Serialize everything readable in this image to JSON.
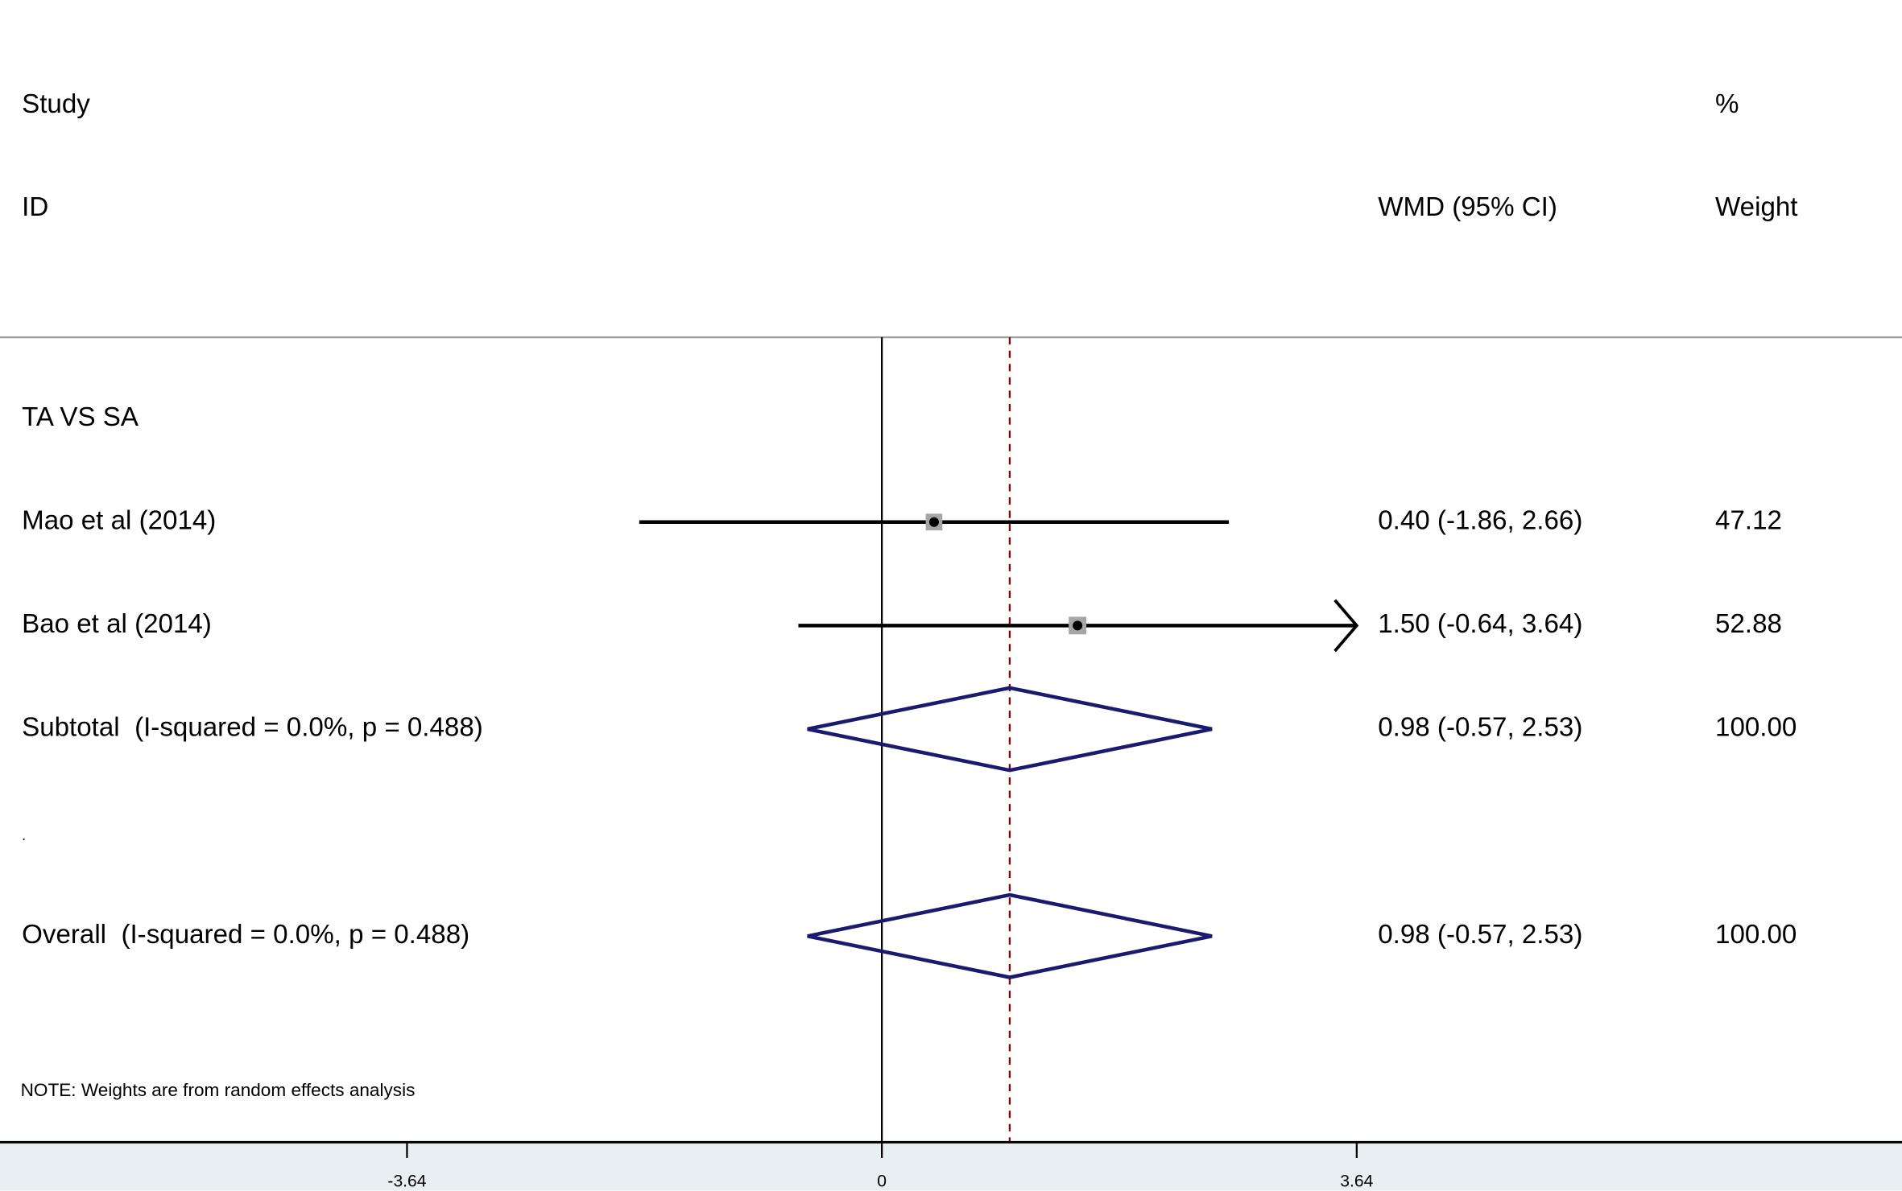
{
  "chart_data": {
    "type": "forest",
    "headers": {
      "study": "Study",
      "id": "ID",
      "effect": "WMD (95% CI)",
      "percent": "%",
      "weight": "Weight"
    },
    "rows": [
      {
        "kind": "group",
        "label": "TA VS SA"
      },
      {
        "kind": "study",
        "label": "Mao et al (2014)",
        "estimate": 0.4,
        "lower": -1.86,
        "upper": 2.66,
        "ci_label": "0.40 (-1.86, 2.66)",
        "weight": 47.12
      },
      {
        "kind": "study",
        "label": "Bao et al (2014)",
        "estimate": 1.5,
        "lower": -0.64,
        "upper": 3.64,
        "ci_label": "1.50 (-0.64, 3.64)",
        "weight": 52.88
      },
      {
        "kind": "subtotal",
        "label": "Subtotal  (I-squared = 0.0%, p = 0.488)",
        "estimate": 0.98,
        "lower": -0.57,
        "upper": 2.53,
        "ci_label": "0.98 (-0.57, 2.53)",
        "weight": 100,
        "weight_label": "100.00"
      },
      {
        "kind": "spacer",
        "label": "."
      },
      {
        "kind": "overall",
        "label": "Overall  (I-squared = 0.0%, p = 0.488)",
        "estimate": 0.98,
        "lower": -0.57,
        "upper": 2.53,
        "ci_label": "0.98 (-0.57, 2.53)",
        "weight": 100,
        "weight_label": "100.00"
      }
    ],
    "note": "NOTE: Weights are from random effects analysis",
    "xlim": [
      -6.76,
      7.82
    ],
    "xticks": [
      -3.64,
      0,
      3.64
    ],
    "null_line": 0,
    "colors": {
      "square": "#a6a6a6",
      "diamond": "#1a1a6e",
      "pooled_line": "#8b0000",
      "axis_band": "#e8eff2"
    }
  }
}
